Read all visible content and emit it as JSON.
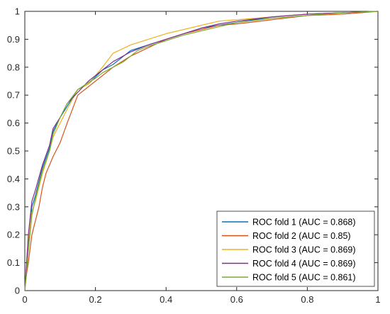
{
  "chart_data": {
    "type": "line",
    "title": "",
    "xlabel": "",
    "ylabel": "",
    "xlim": [
      0,
      1
    ],
    "ylim": [
      0,
      1
    ],
    "grid": false,
    "legend_position": "bottom-right",
    "x_ticks": [
      "0",
      "0.2",
      "0.4",
      "0.6",
      "0.8",
      "1"
    ],
    "y_ticks": [
      "0",
      "0.1",
      "0.2",
      "0.3",
      "0.4",
      "0.5",
      "0.6",
      "0.7",
      "0.8",
      "0.9",
      "1"
    ],
    "series": [
      {
        "name": "ROC fold 1 (AUC = 0.868)",
        "color": "#0072BD",
        "points": [
          [
            0,
            0
          ],
          [
            0.005,
            0.08
          ],
          [
            0.01,
            0.15
          ],
          [
            0.02,
            0.3
          ],
          [
            0.03,
            0.34
          ],
          [
            0.05,
            0.44
          ],
          [
            0.07,
            0.51
          ],
          [
            0.08,
            0.57
          ],
          [
            0.1,
            0.62
          ],
          [
            0.12,
            0.66
          ],
          [
            0.15,
            0.72
          ],
          [
            0.18,
            0.74
          ],
          [
            0.22,
            0.79
          ],
          [
            0.25,
            0.81
          ],
          [
            0.28,
            0.84
          ],
          [
            0.3,
            0.86
          ],
          [
            0.35,
            0.88
          ],
          [
            0.4,
            0.9
          ],
          [
            0.45,
            0.92
          ],
          [
            0.5,
            0.94
          ],
          [
            0.55,
            0.95
          ],
          [
            0.6,
            0.96
          ],
          [
            0.7,
            0.98
          ],
          [
            0.8,
            0.99
          ],
          [
            0.9,
            0.995
          ],
          [
            1,
            1
          ]
        ]
      },
      {
        "name": "ROC fold 2 (AUC = 0.85)",
        "color": "#D95319",
        "points": [
          [
            0,
            0
          ],
          [
            0.005,
            0.06
          ],
          [
            0.01,
            0.1
          ],
          [
            0.02,
            0.2
          ],
          [
            0.03,
            0.25
          ],
          [
            0.04,
            0.3
          ],
          [
            0.05,
            0.37
          ],
          [
            0.06,
            0.42
          ],
          [
            0.08,
            0.48
          ],
          [
            0.1,
            0.53
          ],
          [
            0.12,
            0.6
          ],
          [
            0.15,
            0.7
          ],
          [
            0.18,
            0.73
          ],
          [
            0.2,
            0.75
          ],
          [
            0.25,
            0.8
          ],
          [
            0.3,
            0.84
          ],
          [
            0.35,
            0.87
          ],
          [
            0.4,
            0.9
          ],
          [
            0.45,
            0.92
          ],
          [
            0.5,
            0.935
          ],
          [
            0.55,
            0.95
          ],
          [
            0.6,
            0.955
          ],
          [
            0.7,
            0.97
          ],
          [
            0.8,
            0.985
          ],
          [
            0.9,
            0.99
          ],
          [
            1,
            1
          ]
        ]
      },
      {
        "name": "ROC fold 3 (AUC = 0.869)",
        "color": "#EDB120",
        "points": [
          [
            0,
            0
          ],
          [
            0.005,
            0.09
          ],
          [
            0.01,
            0.18
          ],
          [
            0.02,
            0.28
          ],
          [
            0.03,
            0.32
          ],
          [
            0.05,
            0.42
          ],
          [
            0.07,
            0.5
          ],
          [
            0.08,
            0.55
          ],
          [
            0.1,
            0.6
          ],
          [
            0.12,
            0.65
          ],
          [
            0.15,
            0.72
          ],
          [
            0.18,
            0.74
          ],
          [
            0.2,
            0.77
          ],
          [
            0.22,
            0.8
          ],
          [
            0.25,
            0.85
          ],
          [
            0.3,
            0.88
          ],
          [
            0.35,
            0.9
          ],
          [
            0.4,
            0.92
          ],
          [
            0.45,
            0.935
          ],
          [
            0.5,
            0.95
          ],
          [
            0.55,
            0.965
          ],
          [
            0.6,
            0.97
          ],
          [
            0.7,
            0.98
          ],
          [
            0.8,
            0.99
          ],
          [
            0.9,
            0.995
          ],
          [
            1,
            1
          ]
        ]
      },
      {
        "name": "ROC fold 4 (AUC = 0.869)",
        "color": "#7E2F8E",
        "points": [
          [
            0,
            0
          ],
          [
            0.005,
            0.1
          ],
          [
            0.01,
            0.2
          ],
          [
            0.02,
            0.32
          ],
          [
            0.03,
            0.36
          ],
          [
            0.05,
            0.45
          ],
          [
            0.07,
            0.52
          ],
          [
            0.08,
            0.58
          ],
          [
            0.1,
            0.62
          ],
          [
            0.12,
            0.67
          ],
          [
            0.15,
            0.71
          ],
          [
            0.18,
            0.75
          ],
          [
            0.22,
            0.79
          ],
          [
            0.25,
            0.82
          ],
          [
            0.3,
            0.855
          ],
          [
            0.35,
            0.88
          ],
          [
            0.4,
            0.9
          ],
          [
            0.45,
            0.92
          ],
          [
            0.5,
            0.94
          ],
          [
            0.55,
            0.955
          ],
          [
            0.6,
            0.965
          ],
          [
            0.7,
            0.98
          ],
          [
            0.8,
            0.99
          ],
          [
            0.9,
            0.995
          ],
          [
            1,
            1
          ]
        ]
      },
      {
        "name": "ROC fold 5 (AUC = 0.861)",
        "color": "#77AC30",
        "points": [
          [
            0,
            0
          ],
          [
            0.005,
            0.07
          ],
          [
            0.01,
            0.14
          ],
          [
            0.02,
            0.27
          ],
          [
            0.03,
            0.33
          ],
          [
            0.05,
            0.43
          ],
          [
            0.07,
            0.5
          ],
          [
            0.08,
            0.56
          ],
          [
            0.1,
            0.62
          ],
          [
            0.12,
            0.67
          ],
          [
            0.15,
            0.72
          ],
          [
            0.18,
            0.745
          ],
          [
            0.2,
            0.76
          ],
          [
            0.22,
            0.78
          ],
          [
            0.25,
            0.8
          ],
          [
            0.28,
            0.82
          ],
          [
            0.3,
            0.84
          ],
          [
            0.32,
            0.86
          ],
          [
            0.35,
            0.875
          ],
          [
            0.4,
            0.895
          ],
          [
            0.45,
            0.915
          ],
          [
            0.5,
            0.93
          ],
          [
            0.55,
            0.945
          ],
          [
            0.6,
            0.96
          ],
          [
            0.7,
            0.975
          ],
          [
            0.8,
            0.985
          ],
          [
            0.9,
            0.995
          ],
          [
            1,
            1
          ]
        ]
      }
    ]
  }
}
